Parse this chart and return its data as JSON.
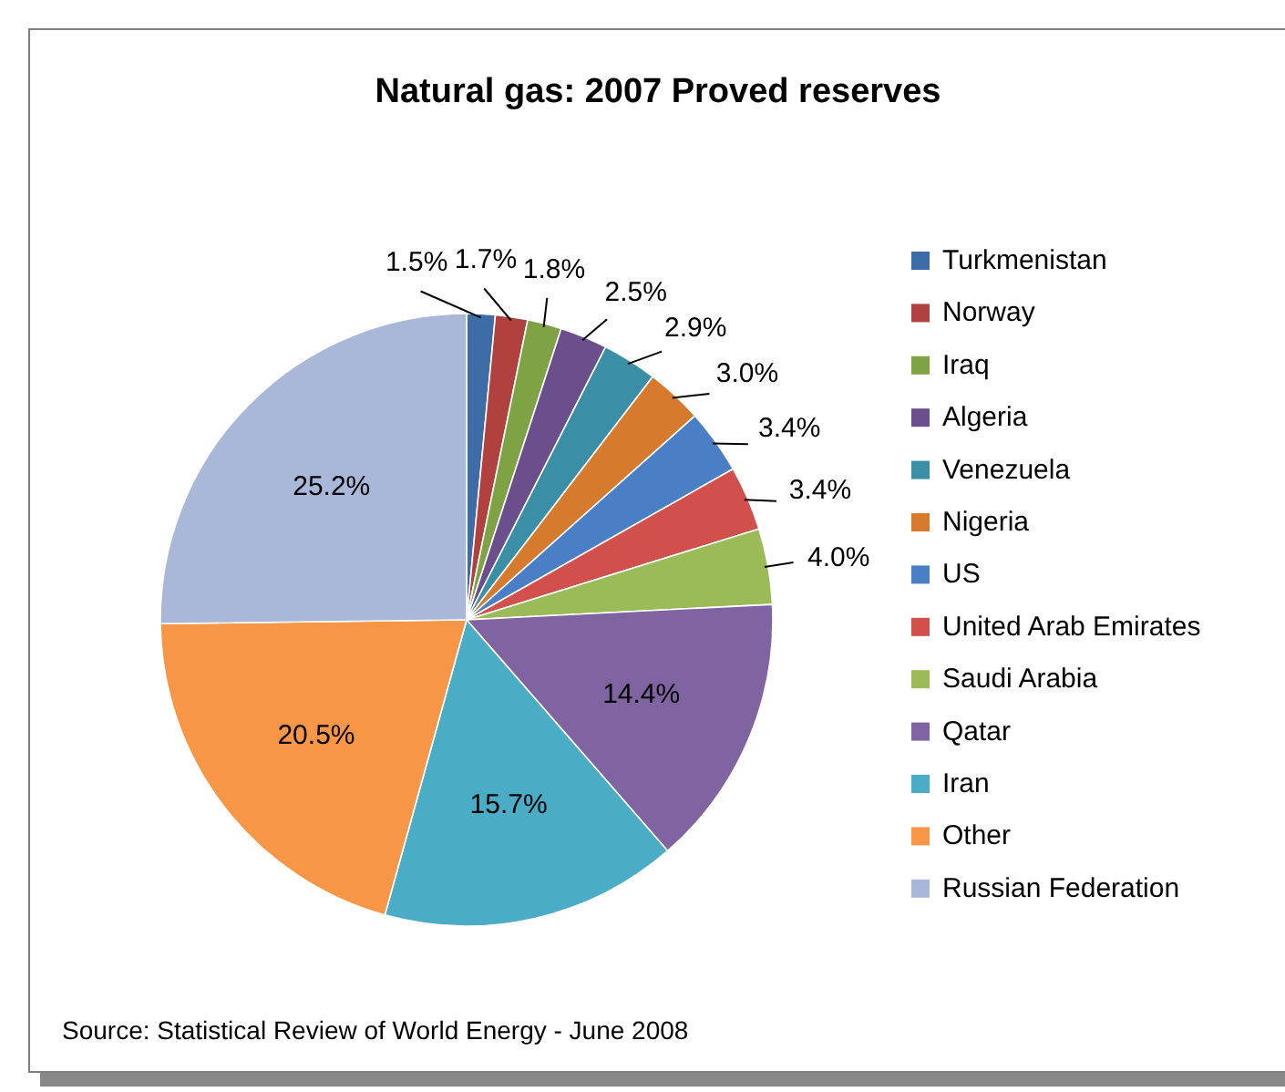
{
  "chart_data": {
    "type": "pie",
    "title": "Natural gas: 2007 Proved reserves",
    "categories": [
      "Turkmenistan",
      "Norway",
      "Iraq",
      "Algeria",
      "Venezuela",
      "Nigeria",
      "US",
      "United Arab Emirates",
      "Saudi Arabia",
      "Qatar",
      "Iran",
      "Other",
      "Russian Federation"
    ],
    "values": [
      1.5,
      1.7,
      1.8,
      2.5,
      2.9,
      3.0,
      3.4,
      3.4,
      4.0,
      14.4,
      15.7,
      20.5,
      25.2
    ],
    "value_labels": [
      "1.5%",
      "1.7%",
      "1.8%",
      "2.5%",
      "2.9%",
      "3.0%",
      "3.4%",
      "3.4%",
      "4.0%",
      "14.4%",
      "15.7%",
      "20.5%",
      "25.2%"
    ],
    "colors": [
      "#3d6ca6",
      "#b0413e",
      "#7ea244",
      "#6a4f8c",
      "#3a8fa6",
      "#d67b2e",
      "#4a7fc6",
      "#d1504c",
      "#9bbb59",
      "#8064a2",
      "#4bacc6",
      "#f79646",
      "#a9b8d8"
    ],
    "legend": "right",
    "annotations": [
      "Source: Statistical Review of World Energy - June 2008"
    ]
  }
}
